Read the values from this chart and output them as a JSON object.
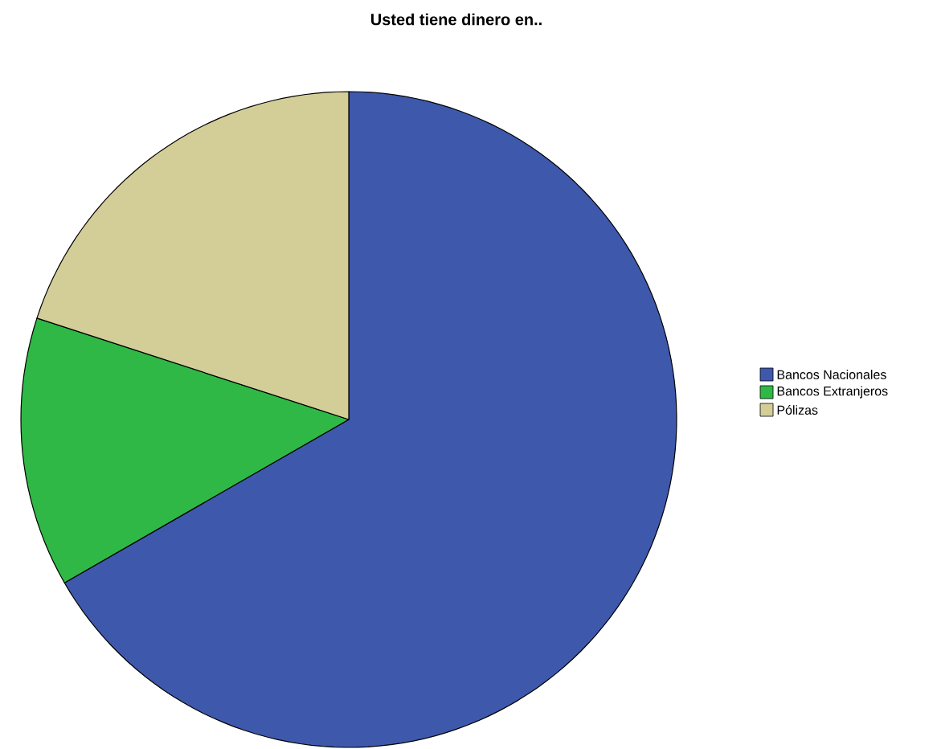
{
  "chart_data": {
    "type": "pie",
    "title": "Usted tiene dinero en..",
    "categories": [
      "Bancos Nacionales",
      "Bancos Extranjeros",
      "Pólizas"
    ],
    "values": [
      66.7,
      13.3,
      20.0
    ],
    "colors": [
      "#3e58ac",
      "#2fb845",
      "#d3ce97"
    ],
    "legend": "top right"
  }
}
